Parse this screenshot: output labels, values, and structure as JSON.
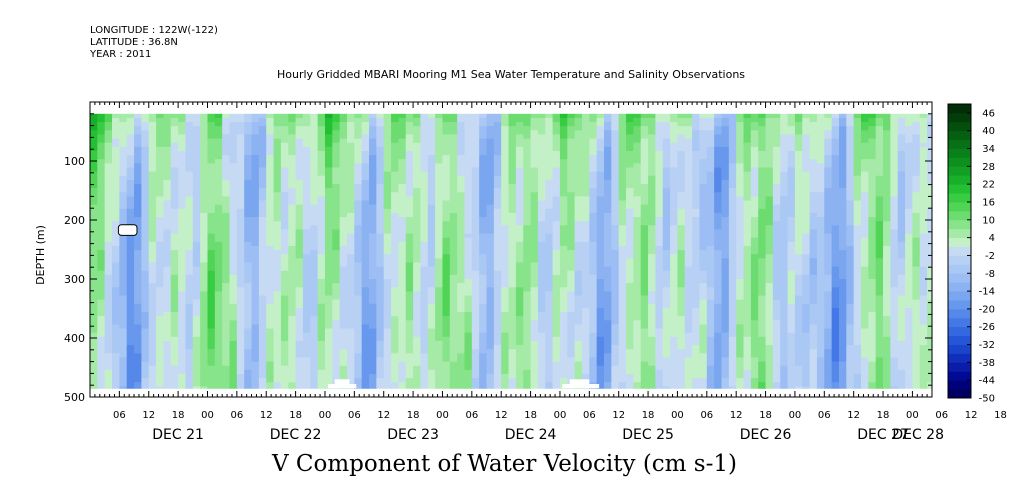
{
  "header": {
    "longitude": "LONGITUDE : 122W(-122)",
    "latitude": "LATITUDE : 36.8N",
    "year": "YEAR : 2011"
  },
  "chart_data": {
    "type": "heatmap",
    "title": "Hourly Gridded MBARI Mooring M1 Sea Water Temperature and Salinity Observations",
    "bottom_title": "V Component of Water Velocity (cm s-1)",
    "xlabel": "",
    "ylabel": "DEPTH (m)",
    "x_range_hours": [
      0,
      172
    ],
    "y_range_m": [
      0,
      500
    ],
    "y_inverted": true,
    "y_ticks": [
      100,
      200,
      300,
      400,
      500
    ],
    "hour_ticks": [
      "06",
      "12",
      "18",
      "00",
      "06",
      "12",
      "18",
      "00",
      "06",
      "12",
      "18",
      "00",
      "06",
      "12",
      "18",
      "00",
      "06",
      "12",
      "18",
      "00",
      "06",
      "12",
      "18",
      "00",
      "06",
      "12",
      "18",
      "00",
      "06",
      "12",
      "18",
      "00"
    ],
    "day_labels": [
      {
        "label": "DEC 21",
        "hour": 18
      },
      {
        "label": "DEC 22",
        "hour": 42
      },
      {
        "label": "DEC 23",
        "hour": 66
      },
      {
        "label": "DEC 24",
        "hour": 90
      },
      {
        "label": "DEC 25",
        "hour": 114
      },
      {
        "label": "DEC 26",
        "hour": 138
      },
      {
        "label": "DEC 27",
        "hour": 162
      },
      {
        "label": "DEC 28",
        "hour": 186
      }
    ],
    "colorbar": {
      "labels": [
        "46",
        "40",
        "34",
        "28",
        "22",
        "16",
        "10",
        "4",
        "-2",
        "-8",
        "-14",
        "-20",
        "-26",
        "-32",
        "-38",
        "-44",
        "-50"
      ],
      "levels": [
        -50,
        -47,
        -44,
        -41,
        -38,
        -35,
        -32,
        -29,
        -26,
        -23,
        -20,
        -17,
        -14,
        -11,
        -8,
        -5,
        -2,
        1,
        4,
        7,
        10,
        13,
        16,
        19,
        22,
        25,
        28,
        31,
        34,
        37,
        40,
        43,
        46,
        49
      ],
      "colors": [
        "#000060",
        "#00007a",
        "#000a94",
        "#0a1ca8",
        "#1030bc",
        "#1a44cc",
        "#2656d8",
        "#3468e0",
        "#4478e6",
        "#5688ea",
        "#6898ee",
        "#7aa6f0",
        "#8cb2f2",
        "#9cbef4",
        "#aac8f4",
        "#b8d0f4",
        "#c6daf4",
        "#c4f0c8",
        "#a6eaa8",
        "#88e48a",
        "#6cdc70",
        "#50d456",
        "#38cc42",
        "#24c034",
        "#18b02a",
        "#12a024",
        "#0e901e",
        "#0a801a",
        "#087016",
        "#066012",
        "#044e0e",
        "#033e0a",
        "#022e08"
      ]
    },
    "grid": false,
    "data_extent_hours": [
      0,
      172
    ],
    "data_extent_depth_m": [
      20,
      485
    ]
  }
}
